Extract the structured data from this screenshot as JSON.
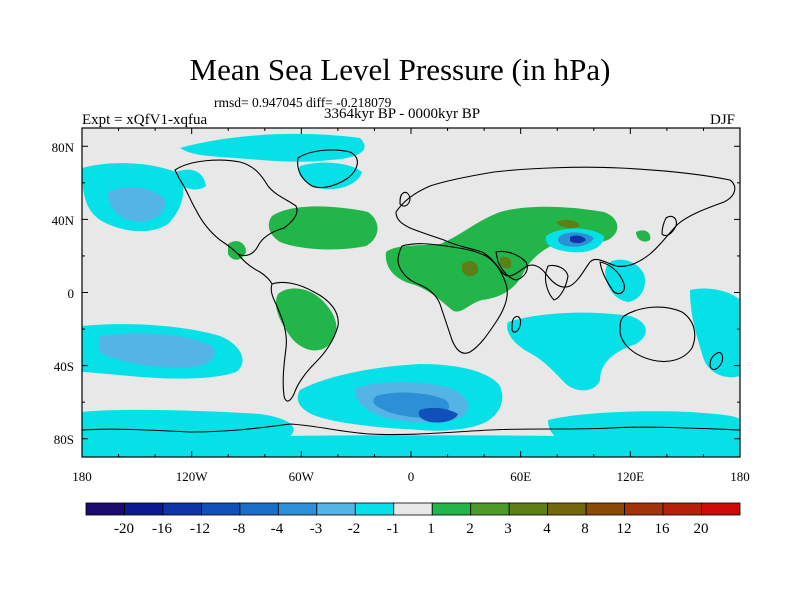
{
  "title": "Mean Sea Level Pressure (in hPa)",
  "stats": "rmsd= 0.947045 diff= -0.218079",
  "period": "3364kyr BP - 0000kyr BP",
  "experiment": "Expt = xQfV1-xqfua",
  "season": "DJF",
  "axes": {
    "x_ticks": [
      "180",
      "120W",
      "60W",
      "0",
      "60E",
      "120E",
      "180"
    ],
    "y_ticks": [
      "80N",
      "40N",
      "0",
      "40S",
      "80S"
    ]
  },
  "colorbar": {
    "colors": [
      "#1c0b6e",
      "#0b1a91",
      "#0f34a8",
      "#1150b8",
      "#1a6fc8",
      "#2d90d6",
      "#55b4e6",
      "#06e1e8",
      "#e8e8e8",
      "#22b64a",
      "#4e9a2a",
      "#5e7f18",
      "#74680f",
      "#8a4a08",
      "#a0330a",
      "#b8200a",
      "#d00a0a"
    ],
    "labels": [
      "-20",
      "-16",
      "-12",
      "-8",
      "-4",
      "-3",
      "-2",
      "-1",
      "1",
      "2",
      "3",
      "4",
      "8",
      "12",
      "16",
      "20"
    ]
  },
  "palette": {
    "neutral": "#e8e8e8",
    "cyan": "#06e1e8",
    "light_blue": "#55b4e6",
    "mid_blue": "#2d90d6",
    "blue": "#1a6fc8",
    "green": "#22b64a",
    "dark_green": "#5e7f18"
  }
}
